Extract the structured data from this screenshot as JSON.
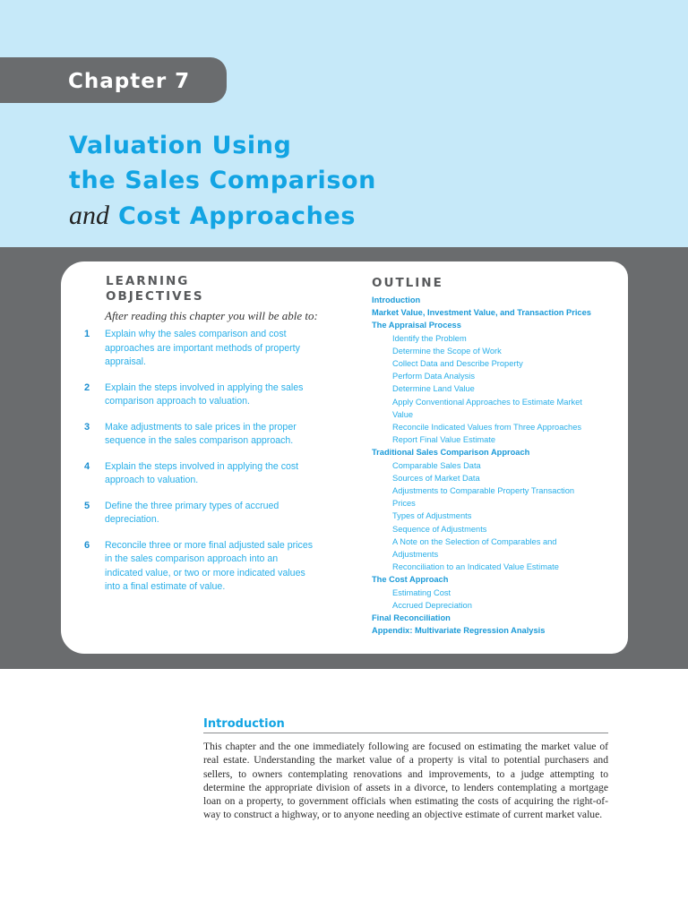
{
  "header": {
    "chapter_label": "Chapter 7",
    "title_lines": [
      "Valuation Using",
      "the Sales Comparison"
    ],
    "title_and": "and",
    "title_last": "Cost Approaches"
  },
  "colors": {
    "header_background": "#c6e9f9",
    "band_gray": "#6a6c6e",
    "accent_blue": "#12a4e3",
    "text_blue": "#27aee8"
  },
  "learning_objectives": {
    "heading_line1": "LEARNING",
    "heading_line2": "OBJECTIVES",
    "intro": "After reading this chapter you will be able to:",
    "items": [
      {
        "num": "1",
        "text": "Explain why the sales comparison and cost approaches are important methods of property appraisal."
      },
      {
        "num": "2",
        "text": "Explain the steps involved in applying the sales comparison approach to valuation."
      },
      {
        "num": "3",
        "text": "Make adjustments to sale prices in the proper sequence in the sales comparison approach."
      },
      {
        "num": "4",
        "text": "Explain the steps involved in applying the cost approach to valuation."
      },
      {
        "num": "5",
        "text": "Define the three primary types of accrued depreciation."
      },
      {
        "num": "6",
        "text": "Reconcile three or more final adjusted sale prices in the sales comparison approach into an indicated value, or two or more indicated values into a final estimate of value."
      }
    ]
  },
  "outline": {
    "heading": "OUTLINE",
    "items": [
      {
        "level": 1,
        "text": "Introduction"
      },
      {
        "level": 1,
        "text": "Market Value, Investment Value, and Transaction Prices"
      },
      {
        "level": 1,
        "text": "The Appraisal Process"
      },
      {
        "level": 2,
        "text": "Identify the Problem"
      },
      {
        "level": 2,
        "text": "Determine the Scope of Work"
      },
      {
        "level": 2,
        "text": "Collect Data and Describe Property"
      },
      {
        "level": 2,
        "text": "Perform Data Analysis"
      },
      {
        "level": 2,
        "text": "Determine Land Value"
      },
      {
        "level": 2,
        "text": "Apply Conventional Approaches to Estimate Market"
      },
      {
        "level": 2,
        "text": "Value"
      },
      {
        "level": 2,
        "text": "Reconcile Indicated Values from Three Approaches"
      },
      {
        "level": 2,
        "text": "Report Final Value Estimate"
      },
      {
        "level": 1,
        "text": "Traditional Sales Comparison Approach"
      },
      {
        "level": 2,
        "text": "Comparable Sales Data"
      },
      {
        "level": 2,
        "text": "Sources of Market Data"
      },
      {
        "level": 2,
        "text": "Adjustments to Comparable Property Transaction"
      },
      {
        "level": 2,
        "text": "Prices"
      },
      {
        "level": 2,
        "text": "Types of Adjustments"
      },
      {
        "level": 2,
        "text": "Sequence of Adjustments"
      },
      {
        "level": 2,
        "text": "A Note on the Selection of Comparables and"
      },
      {
        "level": 2,
        "text": "Adjustments"
      },
      {
        "level": 2,
        "text": "Reconciliation to an Indicated Value Estimate"
      },
      {
        "level": 1,
        "text": "The Cost Approach"
      },
      {
        "level": 2,
        "text": "Estimating Cost"
      },
      {
        "level": 2,
        "text": "Accrued Depreciation"
      },
      {
        "level": 1,
        "text": "Final Reconciliation"
      },
      {
        "level": 1,
        "text": "Appendix: Multivariate Regression Analysis"
      }
    ]
  },
  "introduction": {
    "heading": "Introduction",
    "body": "This chapter and the one immediately following are focused on estimating the market value of real estate. Understanding the market value of a property is vital to potential purchasers and sellers, to owners contemplating renovations and improvements, to a judge attempting to determine the appropriate division of assets in a divorce, to lenders contemplating a mortgage loan on a property, to government officials when estimating the costs of acquir­ing the right-of-way to construct a highway, or to anyone needing an objective estimate of current market value."
  }
}
